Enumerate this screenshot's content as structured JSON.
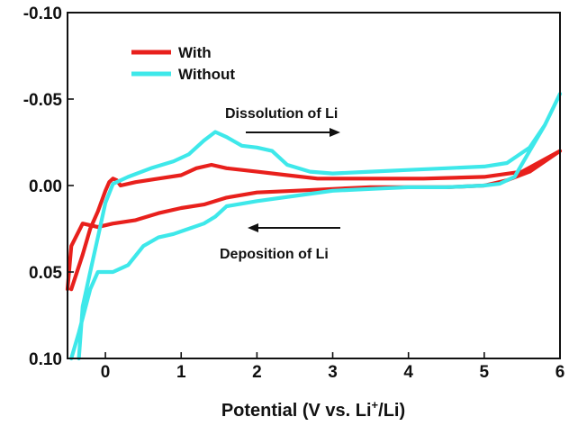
{
  "chart_data": {
    "type": "line",
    "title": "",
    "xlabel_main": "Potential (V vs. Li",
    "xlabel_sup": "+",
    "xlabel_tail": "/Li)",
    "ylabel": "",
    "xlim": [
      -0.5,
      6
    ],
    "ylim": [
      -0.1,
      0.1
    ],
    "y_inverted": true,
    "grid": false,
    "legend_position": "top-left",
    "x_ticks": [
      0,
      1,
      2,
      3,
      4,
      5,
      6
    ],
    "x_tick_labels": [
      "0",
      "1",
      "2",
      "3",
      "4",
      "5",
      "6"
    ],
    "y_ticks": [
      -0.1,
      -0.05,
      0.0,
      0.05,
      0.1
    ],
    "y_tick_labels": [
      "-0.10",
      "-0.05",
      "0.00",
      "0.05",
      "0.10"
    ],
    "annotations": [
      {
        "text": "Dissolution of Li",
        "arrow": "right"
      },
      {
        "text": "Deposition of Li",
        "arrow": "left"
      }
    ],
    "series": [
      {
        "name": "Without",
        "color": "#3ee8ea",
        "points": [
          [
            -0.35,
            0.1
          ],
          [
            -0.3,
            0.07
          ],
          [
            -0.2,
            0.05
          ],
          [
            -0.1,
            0.03
          ],
          [
            0.0,
            0.01
          ],
          [
            0.1,
            -0.001
          ],
          [
            0.3,
            -0.005
          ],
          [
            0.6,
            -0.01
          ],
          [
            0.9,
            -0.014
          ],
          [
            1.1,
            -0.018
          ],
          [
            1.3,
            -0.026
          ],
          [
            1.45,
            -0.031
          ],
          [
            1.6,
            -0.028
          ],
          [
            1.8,
            -0.023
          ],
          [
            2.0,
            -0.022
          ],
          [
            2.2,
            -0.02
          ],
          [
            2.4,
            -0.012
          ],
          [
            2.7,
            -0.008
          ],
          [
            3.0,
            -0.007
          ],
          [
            3.5,
            -0.008
          ],
          [
            4.0,
            -0.009
          ],
          [
            4.5,
            -0.01
          ],
          [
            5.0,
            -0.011
          ],
          [
            5.3,
            -0.013
          ],
          [
            5.6,
            -0.022
          ],
          [
            5.8,
            -0.035
          ],
          [
            6.0,
            -0.053
          ],
          [
            5.8,
            -0.035
          ],
          [
            5.6,
            -0.02
          ],
          [
            5.4,
            -0.005
          ],
          [
            5.2,
            -0.001
          ],
          [
            5.0,
            0.0
          ],
          [
            4.5,
            0.001
          ],
          [
            4.0,
            0.001
          ],
          [
            3.5,
            0.002
          ],
          [
            3.0,
            0.003
          ],
          [
            2.5,
            0.006
          ],
          [
            2.0,
            0.009
          ],
          [
            1.6,
            0.012
          ],
          [
            1.45,
            0.018
          ],
          [
            1.3,
            0.022
          ],
          [
            1.1,
            0.025
          ],
          [
            0.9,
            0.028
          ],
          [
            0.7,
            0.03
          ],
          [
            0.5,
            0.035
          ],
          [
            0.3,
            0.046
          ],
          [
            0.1,
            0.05
          ],
          [
            -0.1,
            0.05
          ],
          [
            -0.2,
            0.06
          ],
          [
            -0.35,
            0.085
          ],
          [
            -0.45,
            0.1
          ]
        ]
      },
      {
        "name": "With",
        "color": "#e8201c",
        "points": [
          [
            -0.45,
            0.06
          ],
          [
            -0.3,
            0.04
          ],
          [
            -0.2,
            0.025
          ],
          [
            -0.1,
            0.015
          ],
          [
            0.0,
            0.003
          ],
          [
            0.05,
            -0.002
          ],
          [
            0.1,
            -0.004
          ],
          [
            0.15,
            -0.003
          ],
          [
            0.2,
            0.0
          ],
          [
            0.4,
            -0.002
          ],
          [
            0.7,
            -0.004
          ],
          [
            1.0,
            -0.006
          ],
          [
            1.2,
            -0.01
          ],
          [
            1.4,
            -0.012
          ],
          [
            1.6,
            -0.01
          ],
          [
            2.0,
            -0.008
          ],
          [
            2.4,
            -0.006
          ],
          [
            2.8,
            -0.004
          ],
          [
            3.5,
            -0.004
          ],
          [
            4.2,
            -0.004
          ],
          [
            5.0,
            -0.005
          ],
          [
            5.5,
            -0.008
          ],
          [
            6.0,
            -0.02
          ],
          [
            5.6,
            -0.008
          ],
          [
            5.3,
            -0.003
          ],
          [
            5.0,
            0.0
          ],
          [
            4.5,
            0.001
          ],
          [
            4.0,
            0.001
          ],
          [
            3.5,
            0.001
          ],
          [
            3.0,
            0.002
          ],
          [
            2.5,
            0.003
          ],
          [
            2.0,
            0.004
          ],
          [
            1.6,
            0.007
          ],
          [
            1.45,
            0.009
          ],
          [
            1.3,
            0.011
          ],
          [
            1.0,
            0.013
          ],
          [
            0.7,
            0.016
          ],
          [
            0.4,
            0.02
          ],
          [
            0.1,
            0.022
          ],
          [
            -0.1,
            0.024
          ],
          [
            -0.3,
            0.022
          ],
          [
            -0.45,
            0.035
          ],
          [
            -0.5,
            0.06
          ]
        ]
      }
    ]
  }
}
